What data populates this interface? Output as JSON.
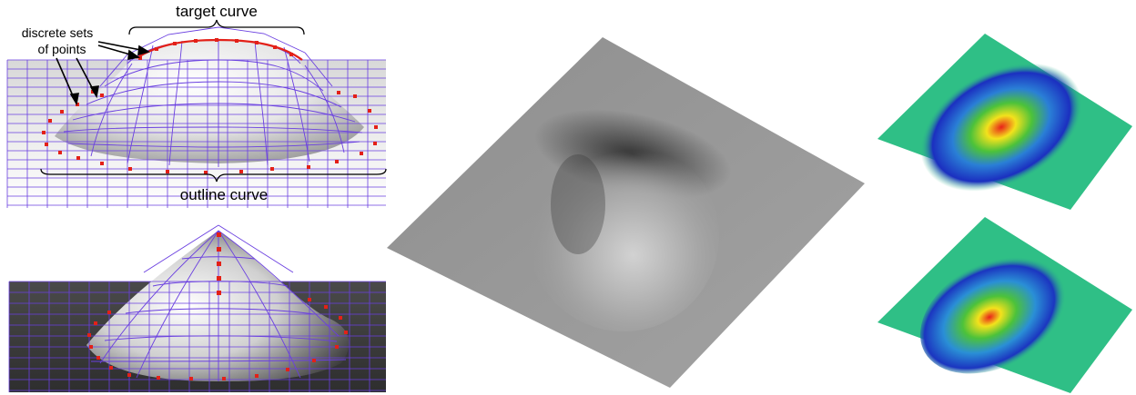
{
  "annotations": {
    "target_curve_label": "target curve",
    "outline_curve_label": "outline curve",
    "points_label_line1": "discrete sets",
    "points_label_line2": "of points"
  },
  "colors": {
    "mesh_line": "#6a3fe0",
    "control_point": "#e32018",
    "surface_gray": "#9a9a9a",
    "heatmap_base": "#2fbf86"
  }
}
